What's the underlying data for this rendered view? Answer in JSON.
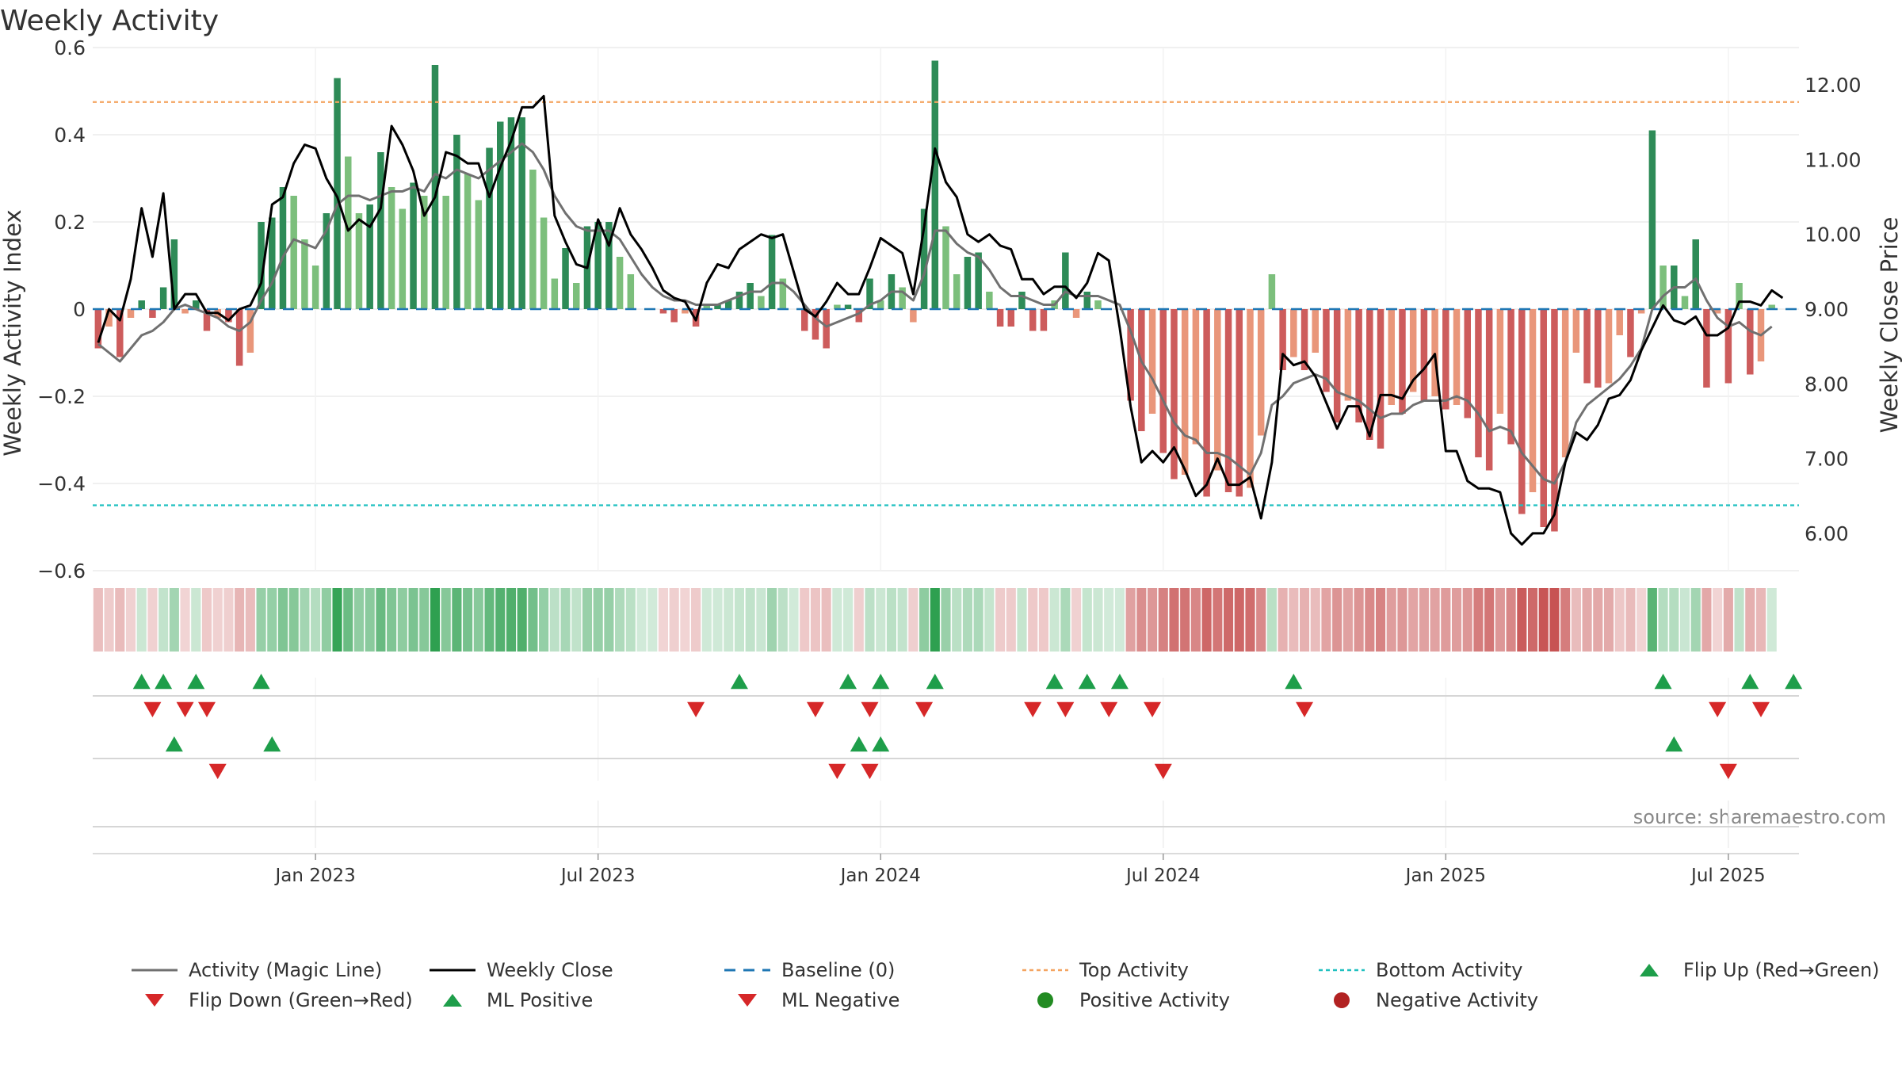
{
  "chart_data": {
    "type": "bar",
    "title": "Weekly Activity",
    "ylabel": "Weekly Activity Index",
    "y2label": "Weekly Close Price",
    "source": "source: sharemaestro.com",
    "ylim": [
      -0.6,
      0.6
    ],
    "y2lim": [
      5.5,
      12.5
    ],
    "yticks": [
      "0.6",
      "0.4",
      "0.2",
      "0",
      "−0.2",
      "−0.4",
      "−0.6"
    ],
    "y2ticks": [
      "12.00",
      "11.00",
      "10.00",
      "9.00",
      "8.00",
      "7.00",
      "6.00"
    ],
    "xticks": [
      "Jan 2023",
      "Jul 2023",
      "Jan 2024",
      "Jul 2024",
      "Jan 2025",
      "Jul 2025"
    ],
    "top_activity": 0.475,
    "bottom_activity": -0.45,
    "weeks": 157,
    "activity": [
      -0.09,
      -0.04,
      -0.11,
      -0.02,
      0.02,
      -0.02,
      0.05,
      0.16,
      -0.01,
      0.02,
      -0.05,
      -0.02,
      -0.03,
      -0.13,
      -0.1,
      0.2,
      0.21,
      0.28,
      0.26,
      0.16,
      0.1,
      0.22,
      0.53,
      0.35,
      0.22,
      0.24,
      0.36,
      0.28,
      0.23,
      0.29,
      0.26,
      0.56,
      0.26,
      0.4,
      0.31,
      0.25,
      0.37,
      0.43,
      0.44,
      0.44,
      0.32,
      0.21,
      0.07,
      0.14,
      0.06,
      0.19,
      0.2,
      0.2,
      0.12,
      0.08,
      0.0,
      0.0,
      -0.01,
      -0.03,
      -0.01,
      -0.04,
      0.01,
      0.01,
      0.02,
      0.04,
      0.06,
      0.03,
      0.17,
      0.07,
      0.0,
      -0.05,
      -0.07,
      -0.09,
      0.01,
      0.01,
      -0.03,
      0.07,
      0.02,
      0.08,
      0.05,
      -0.03,
      0.23,
      0.57,
      0.19,
      0.08,
      0.12,
      0.13,
      0.04,
      -0.04,
      -0.04,
      0.04,
      -0.05,
      -0.05,
      0.02,
      0.13,
      -0.02,
      0.04,
      0.02,
      0.0,
      0.0,
      -0.21,
      -0.28,
      -0.24,
      -0.33,
      -0.39,
      -0.38,
      -0.31,
      -0.43,
      -0.37,
      -0.42,
      -0.43,
      -0.41,
      -0.29,
      0.08,
      -0.14,
      -0.11,
      -0.14,
      -0.1,
      -0.19,
      -0.26,
      -0.21,
      -0.26,
      -0.3,
      -0.32,
      -0.22,
      -0.24,
      -0.19,
      -0.21,
      -0.2,
      -0.23,
      -0.22,
      -0.25,
      -0.34,
      -0.37,
      -0.24,
      -0.31,
      -0.47,
      -0.42,
      -0.5,
      -0.51,
      -0.34,
      -0.1,
      -0.17,
      -0.18,
      -0.17,
      -0.06,
      -0.11,
      -0.01,
      0.41,
      0.1,
      0.1,
      0.03,
      0.16,
      -0.18,
      -0.01,
      -0.17,
      0.06,
      -0.15,
      -0.12,
      0.01
    ],
    "magic_line": [
      -0.08,
      -0.1,
      -0.12,
      -0.09,
      -0.06,
      -0.05,
      -0.03,
      0.0,
      0.01,
      0.0,
      -0.01,
      -0.02,
      -0.04,
      -0.05,
      -0.03,
      0.02,
      0.06,
      0.12,
      0.16,
      0.15,
      0.14,
      0.18,
      0.24,
      0.26,
      0.26,
      0.25,
      0.26,
      0.27,
      0.27,
      0.28,
      0.27,
      0.31,
      0.3,
      0.32,
      0.31,
      0.3,
      0.32,
      0.34,
      0.36,
      0.38,
      0.36,
      0.32,
      0.26,
      0.22,
      0.19,
      0.18,
      0.18,
      0.18,
      0.16,
      0.12,
      0.08,
      0.05,
      0.03,
      0.02,
      0.02,
      0.01,
      0.01,
      0.01,
      0.02,
      0.03,
      0.04,
      0.04,
      0.06,
      0.06,
      0.04,
      0.01,
      -0.02,
      -0.04,
      -0.03,
      -0.02,
      -0.01,
      0.01,
      0.02,
      0.04,
      0.04,
      0.02,
      0.08,
      0.18,
      0.18,
      0.15,
      0.13,
      0.12,
      0.09,
      0.05,
      0.03,
      0.03,
      0.02,
      0.01,
      0.01,
      0.04,
      0.03,
      0.03,
      0.03,
      0.02,
      0.01,
      -0.05,
      -0.12,
      -0.16,
      -0.21,
      -0.26,
      -0.29,
      -0.3,
      -0.33,
      -0.33,
      -0.34,
      -0.36,
      -0.38,
      -0.33,
      -0.22,
      -0.2,
      -0.17,
      -0.16,
      -0.15,
      -0.16,
      -0.19,
      -0.2,
      -0.21,
      -0.23,
      -0.25,
      -0.24,
      -0.24,
      -0.22,
      -0.21,
      -0.21,
      -0.21,
      -0.2,
      -0.21,
      -0.24,
      -0.28,
      -0.27,
      -0.28,
      -0.33,
      -0.36,
      -0.39,
      -0.4,
      -0.35,
      -0.26,
      -0.22,
      -0.2,
      -0.18,
      -0.16,
      -0.13,
      -0.09,
      0.0,
      0.03,
      0.05,
      0.05,
      0.07,
      0.02,
      -0.02,
      -0.04,
      -0.03,
      -0.05,
      -0.06,
      -0.04
    ],
    "weekly_close": [
      8.55,
      9.0,
      8.85,
      9.4,
      10.35,
      9.7,
      10.55,
      9.0,
      9.2,
      9.2,
      8.95,
      8.95,
      8.85,
      9.0,
      9.05,
      9.35,
      10.4,
      10.5,
      10.95,
      11.2,
      11.15,
      10.75,
      10.5,
      10.05,
      10.2,
      10.1,
      10.35,
      11.45,
      11.2,
      10.85,
      10.25,
      10.5,
      11.1,
      11.05,
      10.95,
      10.95,
      10.5,
      10.9,
      11.25,
      11.7,
      11.7,
      11.85,
      10.25,
      9.9,
      9.6,
      9.55,
      10.2,
      9.85,
      10.35,
      10.0,
      9.8,
      9.55,
      9.25,
      9.15,
      9.1,
      8.85,
      9.35,
      9.6,
      9.55,
      9.8,
      9.9,
      10.0,
      9.95,
      10.0,
      9.5,
      9.0,
      8.9,
      9.1,
      9.35,
      9.2,
      9.2,
      9.55,
      9.95,
      9.85,
      9.75,
      9.2,
      10.1,
      11.15,
      10.7,
      10.5,
      10.0,
      9.9,
      10.0,
      9.85,
      9.8,
      9.4,
      9.4,
      9.2,
      9.3,
      9.3,
      9.15,
      9.35,
      9.75,
      9.65,
      8.75,
      7.7,
      6.95,
      7.1,
      6.95,
      7.15,
      6.85,
      6.5,
      6.65,
      7.0,
      6.65,
      6.65,
      6.75,
      6.2,
      6.95,
      8.4,
      8.25,
      8.3,
      8.1,
      7.75,
      7.4,
      7.7,
      7.7,
      7.3,
      7.85,
      7.85,
      7.8,
      8.05,
      8.2,
      8.4,
      7.1,
      7.1,
      6.7,
      6.6,
      6.6,
      6.55,
      6.0,
      5.85,
      6.0,
      6.0,
      6.25,
      6.95,
      7.35,
      7.25,
      7.45,
      7.8,
      7.85,
      8.05,
      8.45,
      8.75,
      9.05,
      8.85,
      8.8,
      8.9,
      8.65,
      8.65,
      8.75,
      9.1,
      9.1,
      9.05,
      9.25,
      9.15
    ]
  },
  "markers": {
    "flip_up": [
      4,
      6,
      9,
      15,
      59,
      69,
      72,
      77,
      88,
      91,
      94,
      110,
      144,
      152,
      156
    ],
    "flip_down": [
      5,
      8,
      10,
      55,
      66,
      71,
      76,
      86,
      89,
      93,
      97,
      111,
      149,
      153
    ],
    "ml_positive": [
      7,
      16,
      70,
      72,
      145
    ],
    "ml_negative": [
      11,
      68,
      71,
      98,
      150
    ]
  },
  "colors": {
    "pos_strong": "#2e8b57",
    "pos_weak": "#7cbf7c",
    "neg_strong": "#cd5c5c",
    "neg_weak": "#e9967a",
    "top_line": "#f4a460",
    "bottom_line": "#20c0c0",
    "baseline": "#1f77b4",
    "magic": "#707070",
    "close": "#000000",
    "up_marker": "#1e9e4a",
    "down_marker": "#d62728",
    "positive_dot": "#228b22",
    "negative_dot": "#b22222"
  },
  "legend": {
    "magic": "Activity (Magic Line)",
    "close": "Weekly Close",
    "baseline": "Baseline (0)",
    "top": "Top Activity",
    "bottom": "Bottom Activity",
    "flip_up": "Flip Up (Red→Green)",
    "flip_down": "Flip Down (Green→Red)",
    "ml_positive": "ML Positive",
    "ml_negative": "ML Negative",
    "positive": "Positive Activity",
    "negative": "Negative Activity"
  }
}
